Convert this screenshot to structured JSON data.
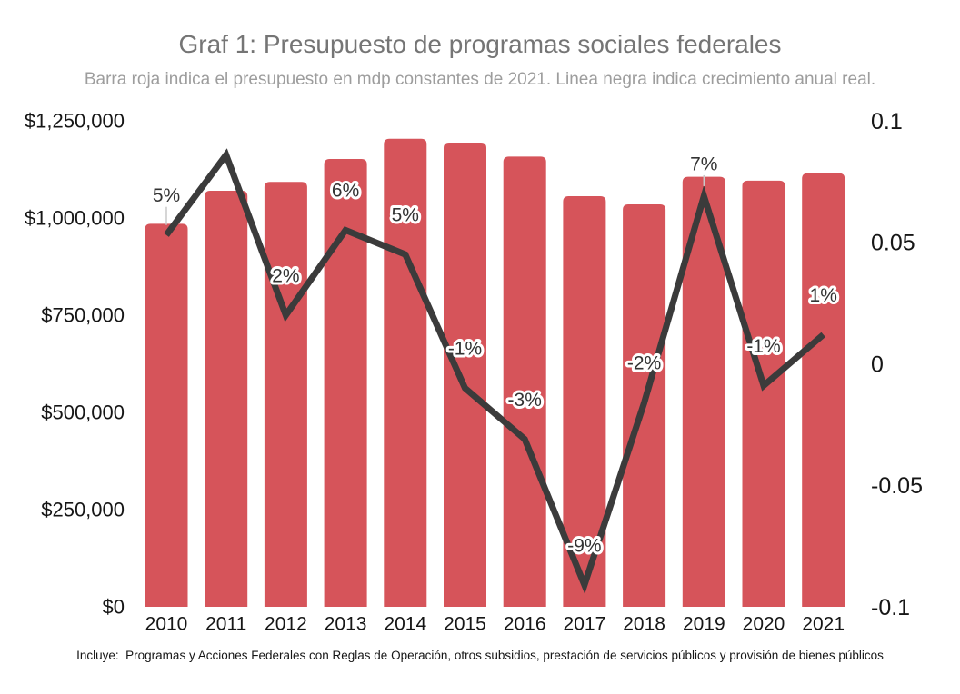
{
  "chart_data": {
    "type": "bar",
    "title": "Graf 1: Presupuesto de programas sociales federales",
    "subtitle": "Barra roja indica el presupuesto en mdp constantes de 2021. Linea negra indica crecimiento anual real.",
    "footnote": "Incluye:  Programas y Acciones Federales con Reglas de Operación, otros subsidios, prestación de servicios públicos y provisión de bienes públicos",
    "categories": [
      "2010",
      "2011",
      "2012",
      "2013",
      "2014",
      "2015",
      "2016",
      "2017",
      "2018",
      "2019",
      "2020",
      "2021"
    ],
    "series": [
      {
        "name": "Presupuesto (mdp constantes de 2021)",
        "type": "bar",
        "axis": "left",
        "values": [
          985000,
          1070000,
          1093000,
          1152000,
          1204000,
          1194000,
          1158000,
          1056000,
          1035000,
          1106000,
          1096000,
          1115000
        ]
      },
      {
        "name": "Crecimiento anual real",
        "type": "line",
        "axis": "right",
        "values": [
          0.053,
          0.086,
          0.02,
          0.055,
          0.045,
          -0.01,
          -0.031,
          -0.091,
          -0.016,
          0.069,
          -0.009,
          0.012
        ]
      }
    ],
    "point_labels": [
      "5%",
      null,
      "2%",
      "6%",
      "5%",
      "-1%",
      "-3%",
      "-9%",
      "-2%",
      "7%",
      "-1%",
      "1%"
    ],
    "label_leaders": [
      0,
      9
    ],
    "axes": {
      "left": {
        "tick_labels": [
          "$1,250,000",
          "$1,000,000",
          "$750,000",
          "$500,000",
          "$250,000",
          "$0"
        ],
        "tick_values": [
          1250000,
          1000000,
          750000,
          500000,
          250000,
          0
        ],
        "range": [
          0,
          1250000
        ]
      },
      "right": {
        "tick_labels": [
          "0.1",
          "0.05",
          "0",
          "-0.05",
          "-0.1"
        ],
        "tick_values": [
          0.1,
          0.05,
          0,
          -0.05,
          -0.1
        ],
        "range": [
          -0.1,
          0.1
        ]
      }
    },
    "grid": false,
    "legend": false,
    "colors": {
      "bar": "#d6545a",
      "line": "#3b3b3b",
      "title": "#757575",
      "subtitle": "#9d9d9d",
      "label_text": "#333333",
      "label_halo": "#ffffff",
      "leader": "#c9c9c9"
    }
  }
}
